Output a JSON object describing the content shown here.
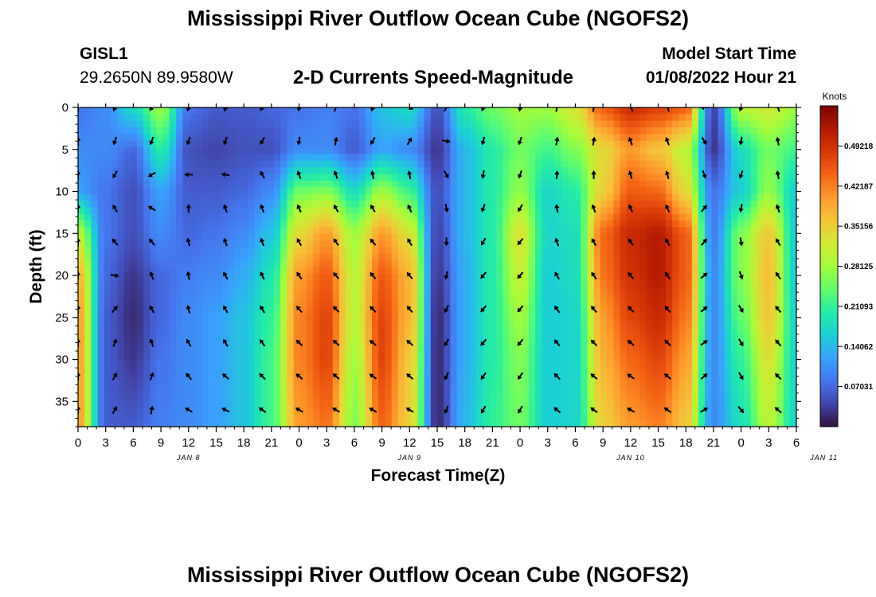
{
  "page": {
    "title": "Mississippi River Outflow Ocean Cube (NGOFS2)",
    "title_bottom": "Mississippi River Outflow Ocean Cube (NGOFS2)",
    "station_id": "GISL1",
    "station_coords": "29.2650N  89.9580W",
    "subtitle": "2-D Currents Speed-Magnitude",
    "model_start_label": "Model Start Time",
    "model_start_time": "01/08/2022 Hour 21"
  },
  "chart_data": {
    "type": "heatmap",
    "title": "2-D Currents Speed-Magnitude",
    "xlabel": "Forecast Time(Z)",
    "ylabel": "Depth (ft)",
    "xlim": [
      0,
      78
    ],
    "ylim": [
      38,
      0
    ],
    "x_tick_labels": [
      "0",
      "3",
      "6",
      "9",
      "12",
      "15",
      "18",
      "21",
      "0",
      "3",
      "6",
      "9",
      "12",
      "15",
      "18",
      "21",
      "0",
      "3",
      "6",
      "9",
      "12",
      "15",
      "18",
      "21",
      "0",
      "3",
      "6"
    ],
    "y_ticks": [
      0,
      5,
      10,
      15,
      20,
      25,
      30,
      35
    ],
    "date_labels": [
      {
        "label": "JAN 8",
        "hour": 12
      },
      {
        "label": "JAN 9",
        "hour": 36
      },
      {
        "label": "JAN 10",
        "hour": 60
      },
      {
        "label": "JAN 11",
        "hour": 81
      }
    ],
    "colorbar": {
      "title": "Knots",
      "min": 0,
      "max": 0.5625,
      "tick_labels": [
        "0.07031",
        "0.14062",
        "0.21093",
        "0.28125",
        "0.35156",
        "0.42187",
        "0.49218"
      ],
      "tick_values": [
        0.07031,
        0.14062,
        0.21093,
        0.28125,
        0.35156,
        0.42187,
        0.49218
      ],
      "colormap": [
        "#30123b",
        "#4145ab",
        "#4675ed",
        "#39a2fc",
        "#1bcfd4",
        "#24eca6",
        "#61fc6c",
        "#a4fc3b",
        "#d1e834",
        "#f3c63a",
        "#fe9b2d",
        "#f36315",
        "#d93806",
        "#b11901",
        "#7a0403"
      ]
    },
    "speed_columns": [
      {
        "hour": 0,
        "speeds": [
          0.08,
          0.1,
          0.12,
          0.3,
          0.38,
          0.4,
          0.4,
          0.4
        ]
      },
      {
        "hour": 3,
        "speeds": [
          0.1,
          0.1,
          0.08,
          0.08,
          0.07,
          0.06,
          0.06,
          0.06
        ]
      },
      {
        "hour": 6,
        "speeds": [
          0.18,
          0.07,
          0.05,
          0.05,
          0.03,
          0.02,
          0.03,
          0.06
        ]
      },
      {
        "hour": 9,
        "speeds": [
          0.28,
          0.2,
          0.12,
          0.1,
          0.07,
          0.07,
          0.08,
          0.09
        ]
      },
      {
        "hour": 12,
        "speeds": [
          0.08,
          0.05,
          0.06,
          0.07,
          0.09,
          0.1,
          0.1,
          0.1
        ]
      },
      {
        "hour": 15,
        "speeds": [
          0.06,
          0.04,
          0.06,
          0.08,
          0.1,
          0.12,
          0.12,
          0.12
        ]
      },
      {
        "hour": 18,
        "speeds": [
          0.06,
          0.05,
          0.07,
          0.1,
          0.13,
          0.15,
          0.15,
          0.15
        ]
      },
      {
        "hour": 21,
        "speeds": [
          0.07,
          0.05,
          0.1,
          0.15,
          0.19,
          0.21,
          0.22,
          0.22
        ]
      },
      {
        "hour": 24,
        "speeds": [
          0.08,
          0.1,
          0.25,
          0.34,
          0.4,
          0.42,
          0.42,
          0.4
        ]
      },
      {
        "hour": 27,
        "speeds": [
          0.09,
          0.1,
          0.26,
          0.4,
          0.45,
          0.47,
          0.47,
          0.43
        ]
      },
      {
        "hour": 30,
        "speeds": [
          0.08,
          0.06,
          0.18,
          0.28,
          0.3,
          0.3,
          0.28,
          0.26
        ]
      },
      {
        "hour": 33,
        "speeds": [
          0.15,
          0.12,
          0.28,
          0.4,
          0.45,
          0.47,
          0.47,
          0.44
        ]
      },
      {
        "hour": 36,
        "speeds": [
          0.18,
          0.1,
          0.22,
          0.33,
          0.38,
          0.38,
          0.36,
          0.35
        ]
      },
      {
        "hour": 39,
        "speeds": [
          0.05,
          0.03,
          0.05,
          0.04,
          0.03,
          0.02,
          0.02,
          0.02
        ]
      },
      {
        "hour": 42,
        "speeds": [
          0.2,
          0.14,
          0.14,
          0.14,
          0.13,
          0.13,
          0.13,
          0.14
        ]
      },
      {
        "hour": 45,
        "speeds": [
          0.25,
          0.2,
          0.2,
          0.2,
          0.2,
          0.2,
          0.2,
          0.21
        ]
      },
      {
        "hour": 48,
        "speeds": [
          0.28,
          0.25,
          0.27,
          0.33,
          0.31,
          0.28,
          0.26,
          0.25
        ]
      },
      {
        "hour": 51,
        "speeds": [
          0.28,
          0.22,
          0.17,
          0.17,
          0.16,
          0.16,
          0.16,
          0.16
        ]
      },
      {
        "hour": 54,
        "speeds": [
          0.33,
          0.26,
          0.2,
          0.18,
          0.18,
          0.17,
          0.17,
          0.17
        ]
      },
      {
        "hour": 57,
        "speeds": [
          0.45,
          0.34,
          0.35,
          0.44,
          0.43,
          0.4,
          0.38,
          0.35
        ]
      },
      {
        "hour": 60,
        "speeds": [
          0.5,
          0.4,
          0.45,
          0.5,
          0.49,
          0.47,
          0.44,
          0.4
        ]
      },
      {
        "hour": 63,
        "speeds": [
          0.48,
          0.36,
          0.44,
          0.52,
          0.52,
          0.5,
          0.47,
          0.42
        ]
      },
      {
        "hour": 66,
        "speeds": [
          0.45,
          0.3,
          0.34,
          0.45,
          0.45,
          0.43,
          0.4,
          0.36
        ]
      },
      {
        "hour": 69,
        "speeds": [
          0.04,
          0.03,
          0.08,
          0.09,
          0.1,
          0.1,
          0.1,
          0.1
        ]
      },
      {
        "hour": 72,
        "speeds": [
          0.3,
          0.18,
          0.16,
          0.26,
          0.26,
          0.24,
          0.21,
          0.18
        ]
      },
      {
        "hour": 75,
        "speeds": [
          0.32,
          0.25,
          0.27,
          0.36,
          0.37,
          0.36,
          0.33,
          0.3
        ]
      },
      {
        "hour": 78,
        "speeds": [
          0.28,
          0.22,
          0.16,
          0.16,
          0.16,
          0.17,
          0.17,
          0.17
        ]
      }
    ],
    "speed_depths": [
      0,
      5,
      10,
      15,
      20,
      25,
      30,
      38
    ],
    "arrow_depths": [
      0,
      4,
      8,
      12,
      16,
      20,
      24,
      28,
      32,
      36
    ],
    "arrow_directions_deg": [
      {
        "hour": 0,
        "dirs": [
          0,
          0,
          0,
          0,
          0,
          0,
          0,
          0,
          0,
          0
        ]
      },
      {
        "hour": 4,
        "dirs": [
          200,
          200,
          210,
          330,
          320,
          100,
          40,
          20,
          30,
          30
        ]
      },
      {
        "hour": 8,
        "dirs": [
          210,
          200,
          240,
          300,
          320,
          340,
          330,
          340,
          20,
          10
        ]
      },
      {
        "hour": 12,
        "dirs": [
          200,
          200,
          270,
          0,
          345,
          350,
          345,
          330,
          320,
          300
        ]
      },
      {
        "hour": 16,
        "dirs": [
          190,
          200,
          280,
          340,
          340,
          330,
          330,
          330,
          310,
          295
        ]
      },
      {
        "hour": 20,
        "dirs": [
          210,
          210,
          330,
          340,
          340,
          335,
          330,
          325,
          315,
          305
        ]
      },
      {
        "hour": 24,
        "dirs": [
          190,
          190,
          340,
          335,
          330,
          325,
          320,
          315,
          310,
          300
        ]
      },
      {
        "hour": 28,
        "dirs": [
          20,
          10,
          340,
          330,
          325,
          320,
          315,
          312,
          310,
          300
        ]
      },
      {
        "hour": 32,
        "dirs": [
          200,
          210,
          350,
          330,
          320,
          320,
          315,
          310,
          305,
          300
        ]
      },
      {
        "hour": 36,
        "dirs": [
          120,
          30,
          350,
          335,
          330,
          320,
          320,
          310,
          310,
          300
        ]
      },
      {
        "hour": 40,
        "dirs": [
          30,
          100,
          150,
          170,
          180,
          195,
          205,
          210,
          205,
          200
        ]
      },
      {
        "hour": 44,
        "dirs": [
          200,
          195,
          190,
          200,
          210,
          220,
          220,
          220,
          215,
          210
        ]
      },
      {
        "hour": 48,
        "dirs": [
          190,
          200,
          200,
          210,
          220,
          220,
          220,
          220,
          215,
          210
        ]
      },
      {
        "hour": 52,
        "dirs": [
          10,
          10,
          5,
          350,
          340,
          330,
          325,
          320,
          315,
          310
        ]
      },
      {
        "hour": 56,
        "dirs": [
          10,
          10,
          0,
          340,
          330,
          325,
          320,
          315,
          310,
          305
        ]
      },
      {
        "hour": 60,
        "dirs": [
          330,
          340,
          345,
          335,
          325,
          320,
          315,
          310,
          305,
          300
        ]
      },
      {
        "hour": 64,
        "dirs": [
          340,
          340,
          345,
          335,
          330,
          325,
          320,
          315,
          310,
          305
        ]
      },
      {
        "hour": 68,
        "dirs": [
          270,
          150,
          160,
          40,
          40,
          50,
          50,
          55,
          50,
          60
        ]
      },
      {
        "hour": 72,
        "dirs": [
          200,
          190,
          200,
          190,
          170,
          160,
          150,
          150,
          150,
          140
        ]
      },
      {
        "hour": 76,
        "dirs": [
          340,
          350,
          350,
          340,
          330,
          325,
          320,
          320,
          315,
          310
        ]
      }
    ]
  }
}
